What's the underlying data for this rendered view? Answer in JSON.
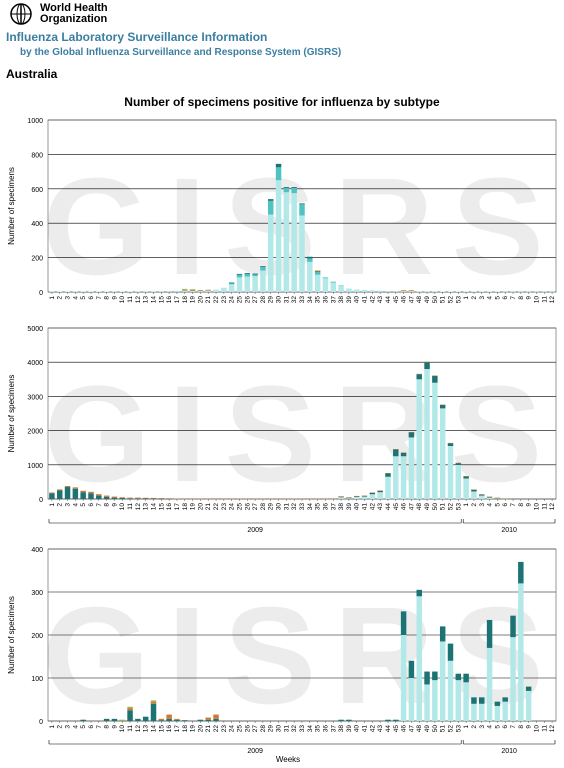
{
  "header": {
    "org_name_line1": "World Health",
    "org_name_line2": "Organization",
    "site_title": "Influenza Laboratory Surveillance Information",
    "site_subtitle": "by the Global Influenza Surveillance and Response System (GISRS)"
  },
  "country": "Australia",
  "main_title": "Number of specimens positive for influenza by subtype",
  "watermark": "GISRS",
  "colors": {
    "main_series": "#b3e8e8",
    "dark_series": "#1b7373",
    "mid_series": "#4fc2c2",
    "orange_series": "#cc7a33",
    "green_series": "#8fb84f",
    "gridline": "#000000"
  },
  "chart_data": [
    {
      "type": "bar",
      "stacked": true,
      "ylabel": "Number of specimens",
      "ylim": [
        0,
        1000
      ],
      "yticks": [
        0,
        200,
        400,
        600,
        800,
        1000
      ],
      "x_tick_labels": [
        "1",
        "2",
        "3",
        "4",
        "5",
        "6",
        "7",
        "8",
        "9",
        "10",
        "11",
        "12",
        "13",
        "14",
        "15",
        "16",
        "17",
        "18",
        "19",
        "20",
        "21",
        "22",
        "23",
        "24",
        "25",
        "26",
        "27",
        "28",
        "29",
        "30",
        "31",
        "32",
        "33",
        "34",
        "35",
        "36",
        "37",
        "38",
        "39",
        "40",
        "41",
        "42",
        "43",
        "44",
        "45",
        "46",
        "47",
        "48",
        "49",
        "50",
        "51",
        "52",
        "53",
        "1",
        "2",
        "3",
        "4",
        "5",
        "6",
        "7",
        "8",
        "9",
        "10",
        "11",
        "12"
      ],
      "year_labels": [],
      "xlabel": "",
      "series": [
        {
          "color_key": "main_series",
          "values": [
            4,
            3,
            3,
            4,
            3,
            3,
            3,
            3,
            4,
            3,
            3,
            4,
            4,
            4,
            5,
            6,
            7,
            8,
            6,
            6,
            8,
            14,
            25,
            45,
            85,
            90,
            92,
            125,
            450,
            650,
            580,
            575,
            445,
            175,
            100,
            80,
            55,
            35,
            20,
            15,
            12,
            10,
            8,
            6,
            6,
            5,
            5,
            4,
            4,
            4,
            3,
            3,
            3,
            3,
            3,
            3,
            3,
            3,
            2,
            2,
            2,
            2,
            2,
            2,
            2
          ]
        },
        {
          "color_key": "mid_series",
          "values": [
            0,
            0,
            0,
            0,
            0,
            0,
            0,
            0,
            0,
            0,
            0,
            0,
            0,
            0,
            0,
            0,
            0,
            0,
            0,
            0,
            0,
            0,
            0,
            5,
            15,
            15,
            10,
            20,
            80,
            75,
            25,
            30,
            65,
            20,
            15,
            5,
            5,
            3,
            0,
            0,
            0,
            0,
            0,
            0,
            0,
            0,
            0,
            0,
            0,
            0,
            0,
            0,
            0,
            0,
            0,
            0,
            0,
            0,
            0,
            0,
            0,
            0,
            0,
            0,
            0
          ]
        },
        {
          "color_key": "dark_series",
          "values": [
            0,
            0,
            0,
            0,
            0,
            0,
            0,
            0,
            0,
            0,
            0,
            0,
            0,
            0,
            0,
            0,
            0,
            0,
            0,
            0,
            0,
            0,
            0,
            5,
            5,
            5,
            5,
            5,
            10,
            20,
            5,
            5,
            5,
            10,
            5,
            0,
            0,
            0,
            0,
            0,
            0,
            0,
            0,
            0,
            0,
            0,
            0,
            0,
            0,
            0,
            0,
            0,
            0,
            0,
            0,
            0,
            0,
            0,
            0,
            0,
            0,
            0,
            0,
            0,
            0
          ]
        },
        {
          "color_key": "orange_series",
          "values": [
            0,
            0,
            0,
            0,
            0,
            0,
            0,
            0,
            0,
            0,
            0,
            0,
            0,
            0,
            0,
            0,
            0,
            5,
            5,
            5,
            5,
            0,
            0,
            0,
            0,
            0,
            0,
            0,
            0,
            0,
            0,
            0,
            0,
            0,
            5,
            0,
            0,
            0,
            0,
            0,
            0,
            0,
            0,
            0,
            0,
            5,
            5,
            0,
            0,
            0,
            0,
            0,
            0,
            0,
            0,
            0,
            0,
            0,
            0,
            0,
            0,
            0,
            0,
            0,
            0
          ]
        },
        {
          "color_key": "green_series",
          "values": [
            0,
            0,
            0,
            0,
            0,
            0,
            0,
            0,
            0,
            0,
            0,
            0,
            0,
            0,
            0,
            0,
            0,
            5,
            5,
            0,
            0,
            0,
            0,
            0,
            0,
            0,
            0,
            0,
            0,
            0,
            0,
            0,
            0,
            0,
            0,
            0,
            0,
            0,
            0,
            0,
            0,
            0,
            0,
            0,
            0,
            0,
            0,
            0,
            0,
            0,
            0,
            0,
            0,
            0,
            0,
            0,
            0,
            0,
            0,
            0,
            0,
            0,
            0,
            0,
            0
          ]
        }
      ]
    },
    {
      "type": "bar",
      "stacked": true,
      "ylabel": "Number of specimens",
      "ylim": [
        0,
        5000
      ],
      "yticks": [
        0,
        1000,
        2000,
        3000,
        4000,
        5000
      ],
      "x_tick_labels": [
        "1",
        "2",
        "3",
        "4",
        "5",
        "6",
        "7",
        "8",
        "9",
        "10",
        "11",
        "12",
        "13",
        "14",
        "15",
        "16",
        "17",
        "18",
        "19",
        "20",
        "21",
        "22",
        "23",
        "24",
        "25",
        "26",
        "27",
        "28",
        "29",
        "30",
        "31",
        "32",
        "33",
        "34",
        "35",
        "36",
        "37",
        "38",
        "39",
        "40",
        "41",
        "42",
        "43",
        "44",
        "45",
        "46",
        "47",
        "48",
        "49",
        "50",
        "51",
        "52",
        "53",
        "1",
        "2",
        "3",
        "4",
        "5",
        "6",
        "7",
        "8",
        "9",
        "10",
        "11",
        "12"
      ],
      "year_labels": [
        {
          "label": "2009",
          "start": 0,
          "end": 52
        },
        {
          "label": "2010",
          "start": 53,
          "end": 64
        }
      ],
      "xlabel": "",
      "series": [
        {
          "color_key": "main_series",
          "values": [
            0,
            0,
            0,
            0,
            0,
            0,
            0,
            0,
            0,
            0,
            0,
            0,
            0,
            0,
            0,
            0,
            0,
            0,
            0,
            0,
            0,
            0,
            0,
            0,
            0,
            0,
            0,
            0,
            0,
            0,
            0,
            0,
            0,
            0,
            0,
            0,
            0,
            50,
            20,
            60,
            70,
            140,
            200,
            650,
            1250,
            1250,
            1800,
            3500,
            3800,
            3400,
            2650,
            1550,
            1000,
            600,
            220,
            100,
            40,
            20,
            10,
            0,
            0,
            0,
            0,
            0,
            0
          ]
        },
        {
          "color_key": "dark_series",
          "values": [
            170,
            250,
            350,
            300,
            200,
            170,
            100,
            60,
            40,
            30,
            20,
            20,
            15,
            10,
            10,
            5,
            0,
            0,
            0,
            0,
            0,
            0,
            0,
            0,
            0,
            0,
            0,
            0,
            0,
            0,
            0,
            0,
            0,
            0,
            0,
            0,
            0,
            20,
            20,
            20,
            20,
            40,
            40,
            100,
            200,
            100,
            150,
            150,
            200,
            200,
            100,
            80,
            50,
            60,
            50,
            30,
            20,
            10,
            0,
            0,
            0,
            0,
            0,
            0,
            0
          ]
        },
        {
          "color_key": "orange_series",
          "values": [
            20,
            30,
            30,
            40,
            40,
            40,
            40,
            40,
            30,
            20,
            20,
            20,
            20,
            20,
            15,
            15,
            10,
            5,
            5,
            5,
            5,
            5,
            5,
            5,
            5,
            5,
            5,
            5,
            5,
            5,
            5,
            5,
            5,
            5,
            5,
            5,
            5,
            10,
            10,
            10,
            10,
            10,
            10,
            10,
            10,
            10,
            10,
            10,
            10,
            10,
            10,
            10,
            10,
            10,
            10,
            10,
            10,
            10,
            10,
            0,
            0,
            0,
            0,
            0,
            0
          ]
        }
      ]
    },
    {
      "type": "bar",
      "stacked": true,
      "ylabel": "Number of specimens",
      "ylim": [
        0,
        400
      ],
      "yticks": [
        0,
        100,
        200,
        300,
        400
      ],
      "x_tick_labels": [
        "1",
        "2",
        "3",
        "4",
        "5",
        "6",
        "7",
        "8",
        "9",
        "10",
        "11",
        "12",
        "13",
        "14",
        "15",
        "16",
        "17",
        "18",
        "19",
        "20",
        "21",
        "22",
        "23",
        "24",
        "25",
        "26",
        "27",
        "28",
        "29",
        "30",
        "31",
        "32",
        "33",
        "34",
        "35",
        "36",
        "37",
        "38",
        "39",
        "40",
        "41",
        "42",
        "43",
        "44",
        "45",
        "46",
        "47",
        "48",
        "49",
        "50",
        "51",
        "52",
        "53",
        "1",
        "2",
        "3",
        "4",
        "5",
        "6",
        "7",
        "8",
        "9",
        "10",
        "11",
        "12"
      ],
      "year_labels": [
        {
          "label": "2009",
          "start": 0,
          "end": 52
        },
        {
          "label": "2010",
          "start": 53,
          "end": 64
        }
      ],
      "xlabel": "Weeks",
      "series": [
        {
          "color_key": "main_series",
          "values": [
            0,
            0,
            0,
            0,
            0,
            0,
            0,
            0,
            0,
            0,
            0,
            0,
            0,
            0,
            0,
            0,
            0,
            0,
            0,
            0,
            0,
            0,
            0,
            0,
            0,
            0,
            0,
            0,
            0,
            0,
            0,
            0,
            0,
            0,
            0,
            0,
            0,
            0,
            0,
            0,
            0,
            0,
            0,
            0,
            0,
            200,
            100,
            290,
            85,
            95,
            185,
            140,
            95,
            90,
            40,
            40,
            170,
            35,
            45,
            195,
            320,
            70,
            0,
            0,
            0
          ]
        },
        {
          "color_key": "dark_series",
          "values": [
            0,
            0,
            0,
            0,
            3,
            0,
            0,
            5,
            5,
            0,
            25,
            5,
            10,
            40,
            2,
            5,
            3,
            2,
            0,
            3,
            3,
            5,
            0,
            0,
            0,
            0,
            0,
            0,
            0,
            0,
            0,
            0,
            0,
            0,
            0,
            0,
            0,
            3,
            3,
            0,
            0,
            0,
            0,
            3,
            3,
            55,
            40,
            15,
            30,
            20,
            35,
            40,
            15,
            20,
            15,
            15,
            65,
            10,
            10,
            50,
            50,
            10,
            0,
            0,
            0
          ]
        },
        {
          "color_key": "orange_series",
          "values": [
            0,
            0,
            0,
            0,
            0,
            0,
            0,
            0,
            0,
            0,
            5,
            0,
            0,
            5,
            3,
            10,
            2,
            0,
            0,
            0,
            5,
            10,
            0,
            0,
            0,
            0,
            0,
            0,
            0,
            0,
            0,
            0,
            0,
            0,
            0,
            0,
            0,
            0,
            0,
            0,
            0,
            0,
            0,
            0,
            0,
            0,
            0,
            0,
            0,
            0,
            0,
            0,
            0,
            0,
            0,
            0,
            0,
            0,
            0,
            0,
            0,
            0,
            0,
            0,
            0
          ]
        },
        {
          "color_key": "green_series",
          "values": [
            0,
            0,
            0,
            0,
            0,
            0,
            0,
            0,
            0,
            3,
            3,
            0,
            0,
            3,
            0,
            0,
            0,
            0,
            0,
            0,
            0,
            0,
            0,
            0,
            0,
            0,
            0,
            0,
            0,
            0,
            0,
            0,
            0,
            0,
            0,
            0,
            0,
            0,
            0,
            0,
            0,
            0,
            0,
            0,
            0,
            0,
            0,
            0,
            0,
            0,
            0,
            0,
            0,
            0,
            0,
            0,
            0,
            0,
            0,
            0,
            0,
            0,
            0,
            0,
            0
          ]
        }
      ]
    }
  ]
}
